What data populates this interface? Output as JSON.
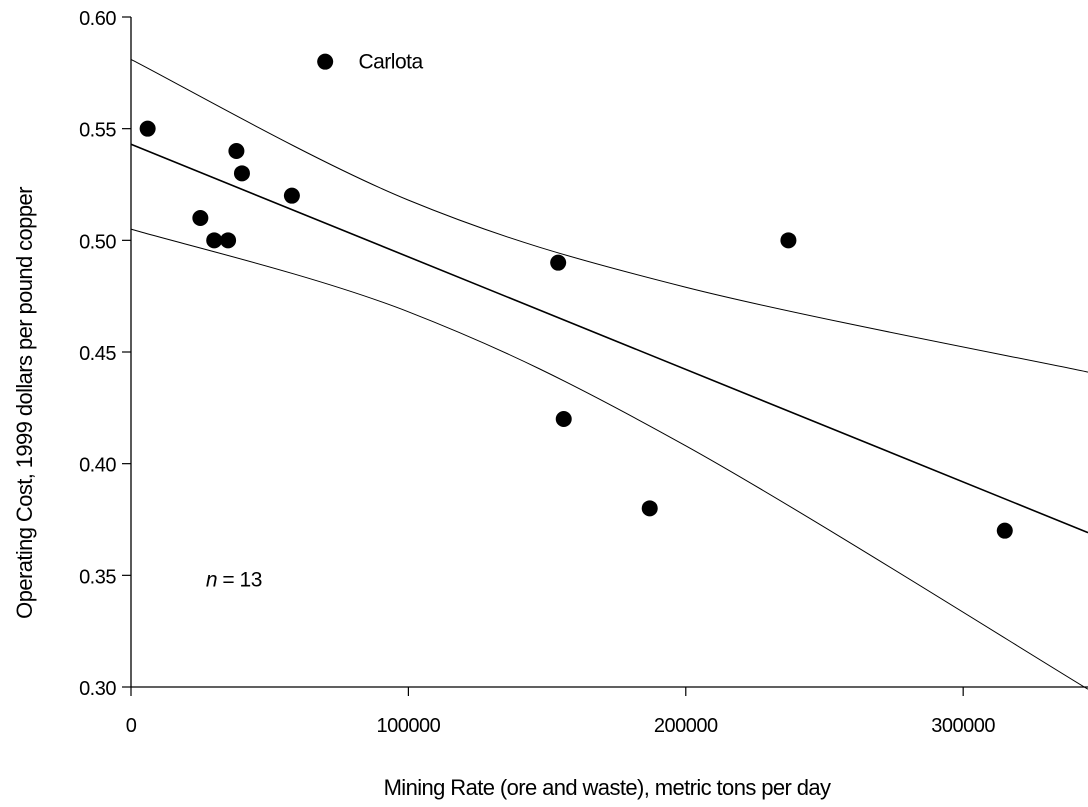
{
  "chart_data": {
    "type": "scatter",
    "xlabel": "Mining Rate (ore and waste), metric tons per day",
    "ylabel": "Operating Cost, 1999 dollars per pound copper",
    "xlim": [
      0,
      345000
    ],
    "ylim": [
      0.3,
      0.6
    ],
    "x_ticks": [
      0,
      100000,
      200000,
      300000
    ],
    "x_tick_labels": [
      "0",
      "100000",
      "200000",
      "300000"
    ],
    "y_ticks": [
      0.3,
      0.35,
      0.4,
      0.45,
      0.5,
      0.55,
      0.6
    ],
    "y_tick_labels": [
      "0.30",
      "0.35",
      "0.40",
      "0.45",
      "0.50",
      "0.55",
      "0.60"
    ],
    "grid": false,
    "points": [
      {
        "x": 6000,
        "y": 0.55
      },
      {
        "x": 25000,
        "y": 0.51
      },
      {
        "x": 30000,
        "y": 0.5
      },
      {
        "x": 35000,
        "y": 0.5
      },
      {
        "x": 38000,
        "y": 0.54
      },
      {
        "x": 40000,
        "y": 0.53
      },
      {
        "x": 58000,
        "y": 0.52
      },
      {
        "x": 70000,
        "y": 0.58
      },
      {
        "x": 154000,
        "y": 0.49
      },
      {
        "x": 156000,
        "y": 0.42
      },
      {
        "x": 187000,
        "y": 0.38
      },
      {
        "x": 237000,
        "y": 0.5
      },
      {
        "x": 315000,
        "y": 0.37
      }
    ],
    "regression": {
      "intercept": 0.543,
      "slope": -5.04e-07
    },
    "confidence_band": {
      "upper": [
        [
          0,
          0.581
        ],
        [
          100000,
          0.518
        ],
        [
          200000,
          0.479
        ],
        [
          345000,
          0.441
        ]
      ],
      "lower": [
        [
          0,
          0.505
        ],
        [
          100000,
          0.468
        ],
        [
          200000,
          0.408
        ],
        [
          345000,
          0.299
        ]
      ]
    },
    "annotations": [
      {
        "text": "Carlota",
        "x": 82000,
        "y": 0.577
      },
      {
        "text_italic": "n",
        "text": " = 13",
        "x": 27000,
        "y": 0.345
      }
    ]
  }
}
